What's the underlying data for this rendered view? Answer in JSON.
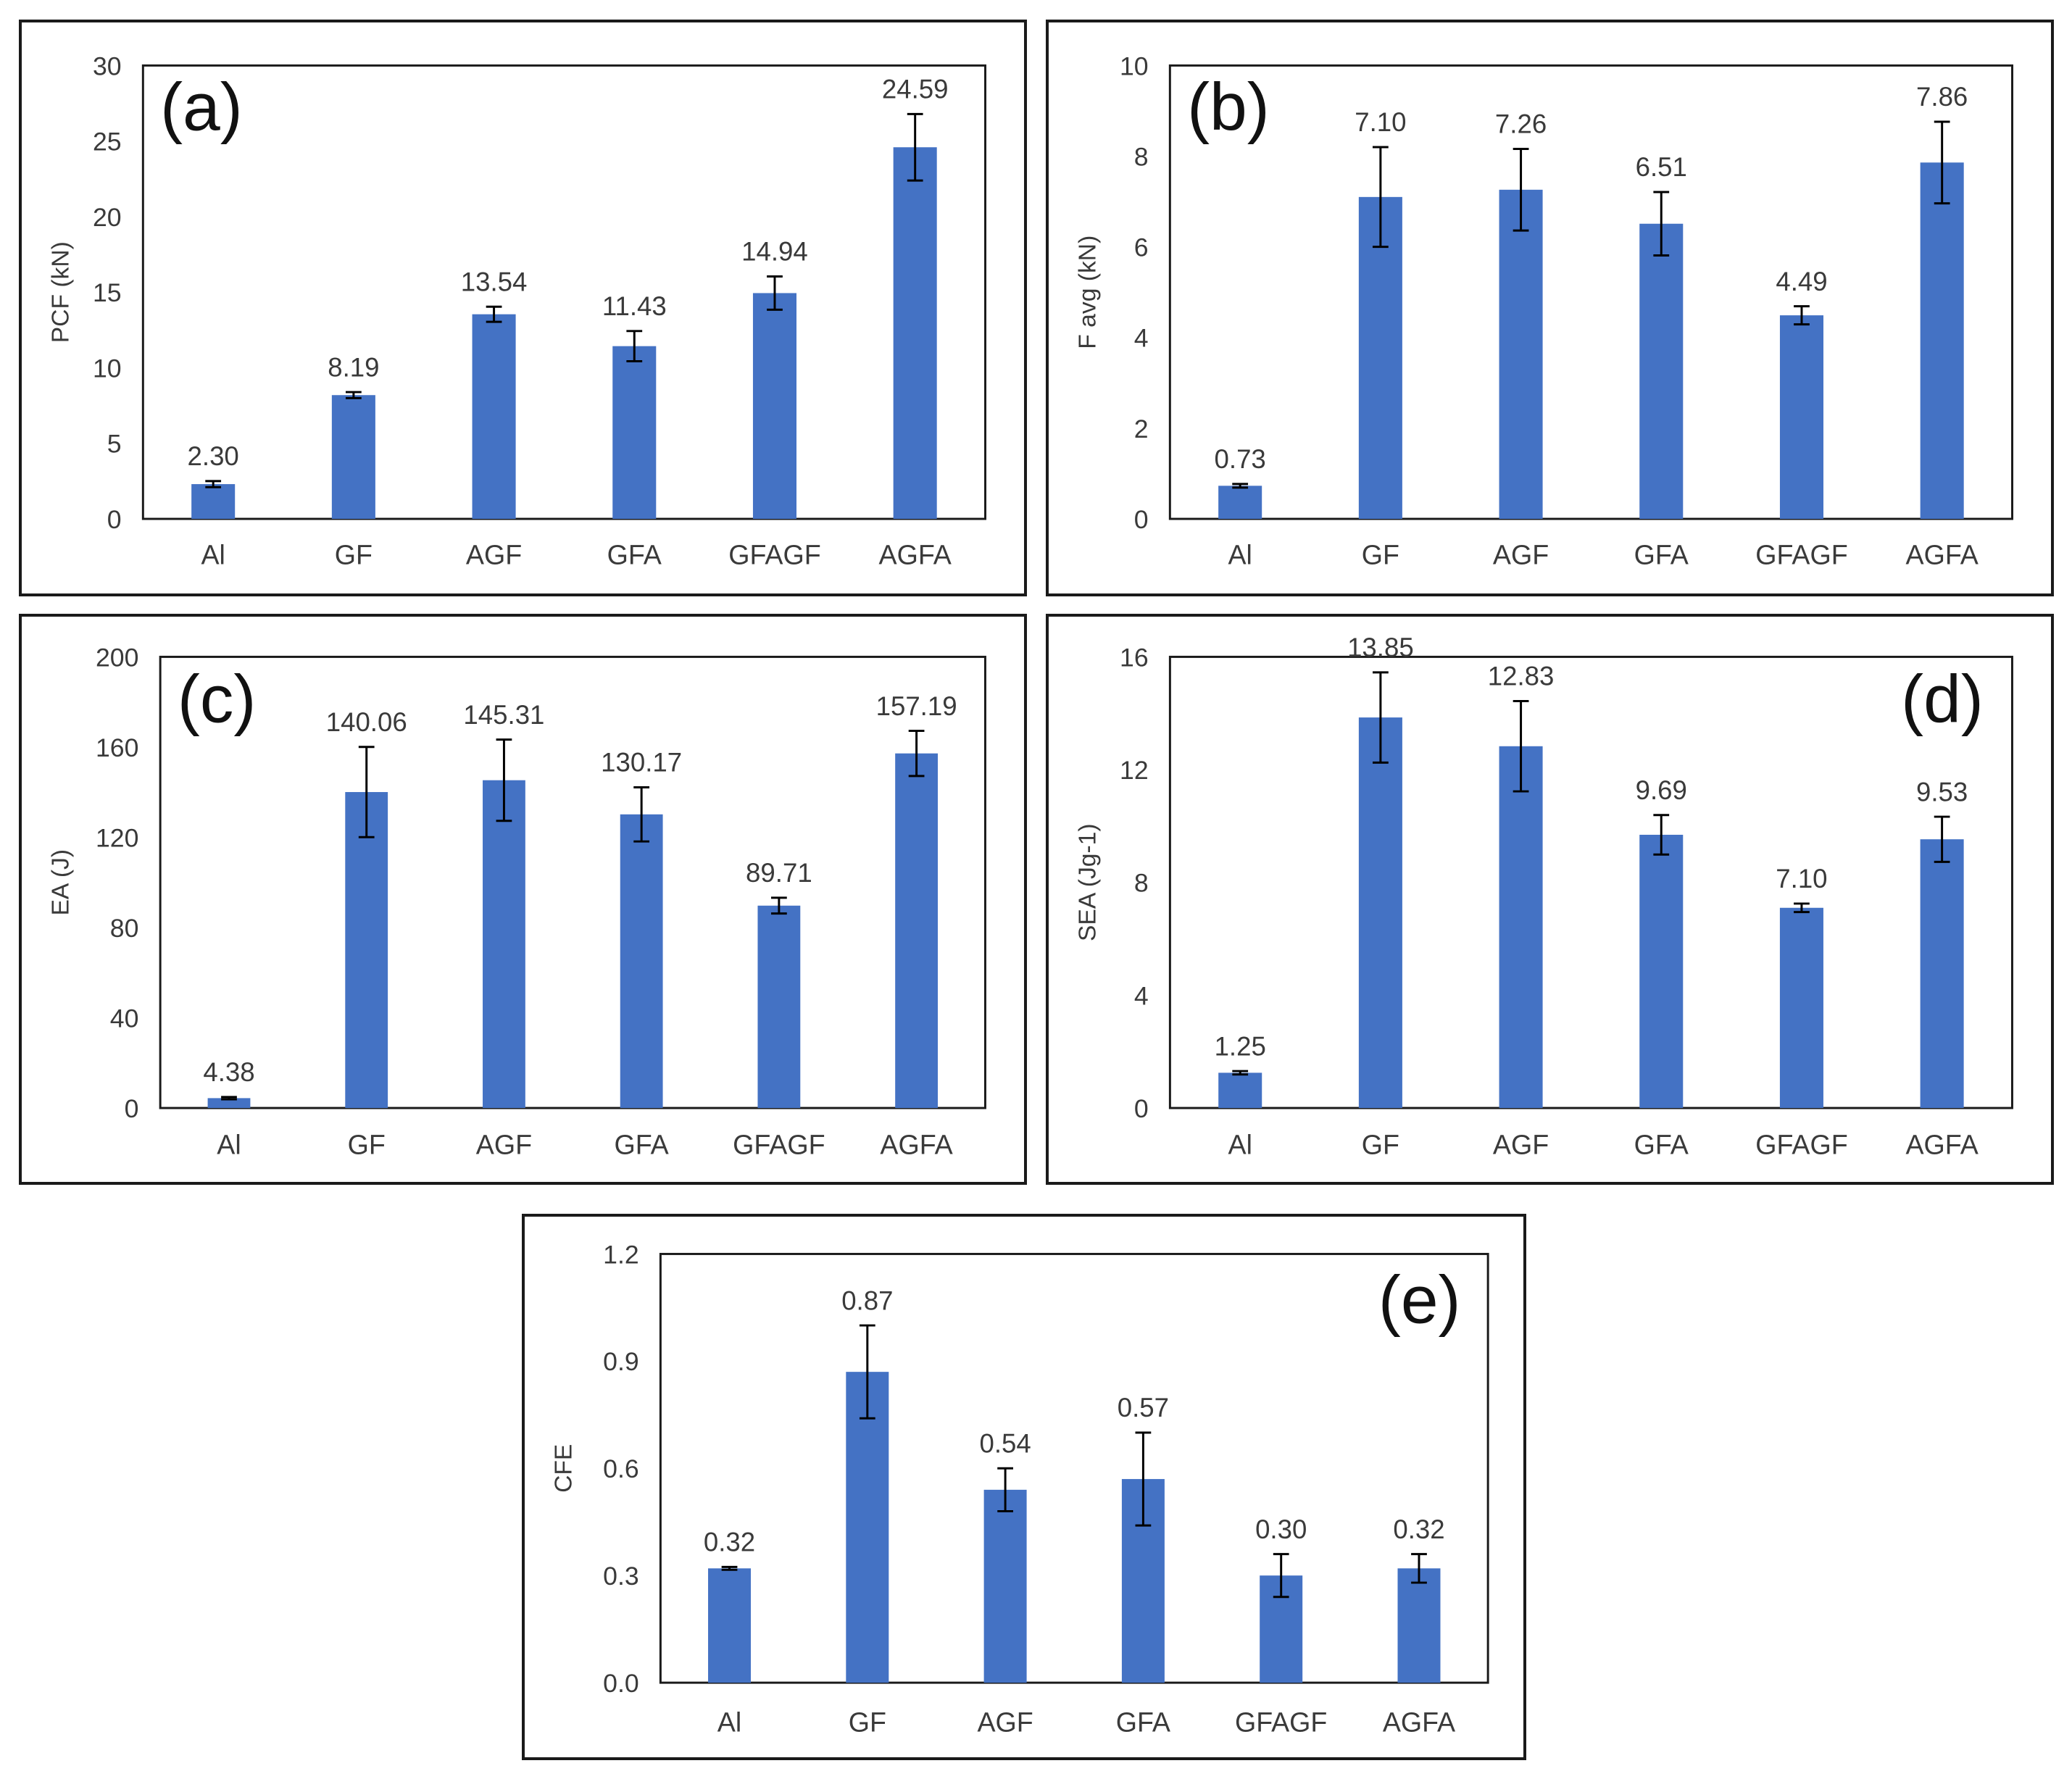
{
  "colors": {
    "bar": "#4472C4",
    "axis": "#1a1a1a",
    "text": "#3a3a3a",
    "leader": "#9a9a9a"
  },
  "chart_data": [
    {
      "id": "a",
      "type": "bar",
      "panel_label": "(a)",
      "label_pos": "top-left",
      "ylabel": "PCF (kN)",
      "ylim": [
        0,
        30
      ],
      "yticks": [
        "0",
        "5",
        "10",
        "15",
        "20",
        "25",
        "30"
      ],
      "categories": [
        "Al",
        "GF",
        "AGF",
        "GFA",
        "GFAGF",
        "AGFA"
      ],
      "values": [
        2.3,
        8.19,
        13.54,
        11.43,
        14.94,
        24.59
      ],
      "errors": [
        0.2,
        0.2,
        0.5,
        1.0,
        1.1,
        2.2
      ],
      "data_labels": [
        "2.30",
        "8.19",
        "13.54",
        "11.43",
        "14.94",
        "24.59"
      ]
    },
    {
      "id": "b",
      "type": "bar",
      "panel_label": "(b)",
      "label_pos": "top-left",
      "ylabel": "F avg (kN)",
      "ylim": [
        0,
        10
      ],
      "yticks": [
        "0",
        "2",
        "4",
        "6",
        "8",
        "10"
      ],
      "categories": [
        "Al",
        "GF",
        "AGF",
        "GFA",
        "GFAGF",
        "AGFA"
      ],
      "values": [
        0.73,
        7.1,
        7.26,
        6.51,
        4.49,
        7.86
      ],
      "errors": [
        0.04,
        1.1,
        0.9,
        0.7,
        0.2,
        0.9
      ],
      "data_labels": [
        "0.73",
        "7.10",
        "7.26",
        "6.51",
        "4.49",
        "7.86"
      ]
    },
    {
      "id": "c",
      "type": "bar",
      "panel_label": "(c)",
      "label_pos": "top-left",
      "ylabel": "EA (J)",
      "ylim": [
        0,
        200
      ],
      "yticks": [
        "0",
        "40",
        "80",
        "120",
        "160",
        "200"
      ],
      "categories": [
        "Al",
        "GF",
        "AGF",
        "GFA",
        "GFAGF",
        "AGFA"
      ],
      "values": [
        4.38,
        140.06,
        145.31,
        130.17,
        89.71,
        157.19
      ],
      "errors": [
        0.5,
        20,
        18,
        12,
        3.5,
        10
      ],
      "data_labels": [
        "4.38",
        "140.06",
        "145.31",
        "130.17",
        "89.71",
        "157.19"
      ]
    },
    {
      "id": "d",
      "type": "bar",
      "panel_label": "(d)",
      "label_pos": "top-right",
      "ylabel": "SEA (Jg-1)",
      "ylim": [
        0,
        16
      ],
      "yticks": [
        "0",
        "4",
        "8",
        "12",
        "16"
      ],
      "categories": [
        "Al",
        "GF",
        "AGF",
        "GFA",
        "GFAGF",
        "AGFA"
      ],
      "values": [
        1.25,
        13.85,
        12.83,
        9.69,
        7.1,
        9.53
      ],
      "errors": [
        0.06,
        1.6,
        1.6,
        0.7,
        0.15,
        0.8
      ],
      "data_labels": [
        "1.25",
        "13.85",
        "12.83",
        "9.69",
        "7.10",
        "9.53"
      ]
    },
    {
      "id": "e",
      "type": "bar",
      "panel_label": "(e)",
      "label_pos": "top-right",
      "ylabel": "CFE",
      "ylim": [
        0,
        1.2
      ],
      "yticks": [
        "0.0",
        "0.3",
        "0.6",
        "0.9",
        "1.2"
      ],
      "categories": [
        "Al",
        "GF",
        "AGF",
        "GFA",
        "GFAGF",
        "AGFA"
      ],
      "values": [
        0.32,
        0.87,
        0.54,
        0.57,
        0.3,
        0.32
      ],
      "errors": [
        0.004,
        0.13,
        0.06,
        0.13,
        0.06,
        0.04
      ],
      "data_labels": [
        "0.32",
        "0.87",
        "0.54",
        "0.57",
        "0.30",
        "0.32"
      ]
    }
  ]
}
